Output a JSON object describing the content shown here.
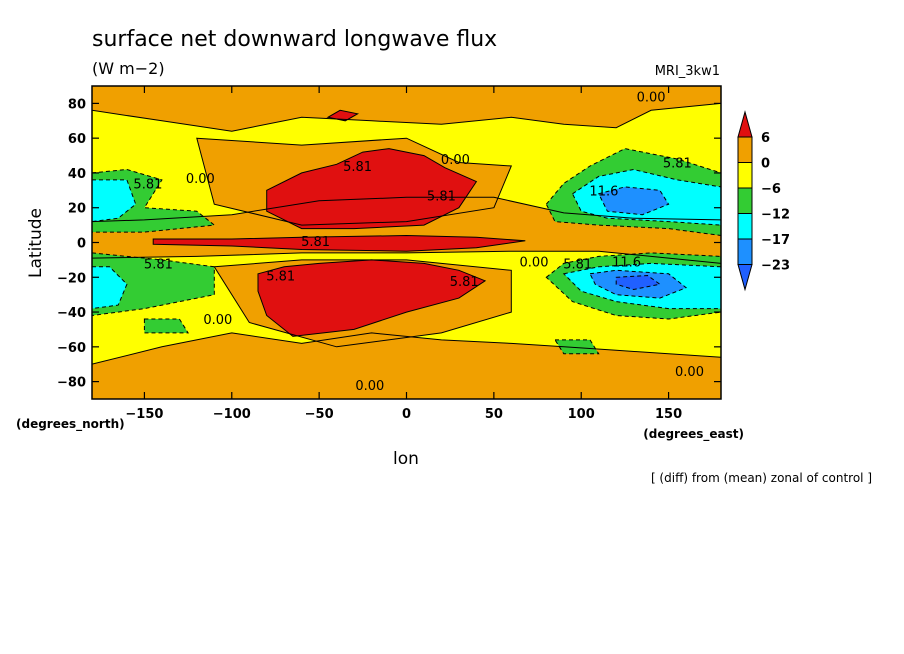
{
  "chart_data": {
    "type": "heatmap",
    "title": "surface net downward longwave flux",
    "units": "(W m−2)",
    "model": "MRI_3kw1",
    "xlabel": "lon",
    "ylabel": "Latitude",
    "x_unit_note": "(degrees_east)",
    "y_unit_note": "(degrees_north)",
    "footnote": "[ (diff) from (mean) zonal of control ]",
    "xlim": [
      -180,
      180
    ],
    "ylim": [
      -90,
      90
    ],
    "x_ticks": [
      {
        "value": -150,
        "label": "−150"
      },
      {
        "value": -100,
        "label": "−100"
      },
      {
        "value": -50,
        "label": "−50"
      },
      {
        "value": 0,
        "label": "0"
      },
      {
        "value": 50,
        "label": "50"
      },
      {
        "value": 100,
        "label": "100"
      },
      {
        "value": 150,
        "label": "150"
      }
    ],
    "y_ticks": [
      {
        "value": 80,
        "label": "80"
      },
      {
        "value": 60,
        "label": "60"
      },
      {
        "value": 40,
        "label": "40"
      },
      {
        "value": 20,
        "label": "20"
      },
      {
        "value": 0,
        "label": "0"
      },
      {
        "value": -20,
        "label": "−20"
      },
      {
        "value": -40,
        "label": "−40"
      },
      {
        "value": -60,
        "label": "−60"
      },
      {
        "value": -80,
        "label": "−80"
      }
    ],
    "colorbar": {
      "levels": [
        6,
        0,
        -6,
        -12,
        -17,
        -23
      ],
      "labels": [
        "6",
        "0",
        "−6",
        "−12",
        "−17",
        "−23"
      ],
      "colors": [
        "#e01010",
        "#f0a000",
        "#ffff00",
        "#33cc33",
        "#00ffff",
        "#1e90ff",
        "#2060ff"
      ]
    },
    "contour_labels": [
      {
        "lon": 140,
        "lat": 84,
        "text": "0.00"
      },
      {
        "lon": 28,
        "lat": 48,
        "text": "0.00"
      },
      {
        "lon": -28,
        "lat": 44,
        "text": "5.81"
      },
      {
        "lon": 155,
        "lat": 46,
        "text": "5.81"
      },
      {
        "lon": -148,
        "lat": 34,
        "text": "5.81"
      },
      {
        "lon": -118,
        "lat": 37,
        "text": "0.00"
      },
      {
        "lon": 20,
        "lat": 27,
        "text": "5.81"
      },
      {
        "lon": 113,
        "lat": 30,
        "text": "11.6"
      },
      {
        "lon": -52,
        "lat": 1,
        "text": "5.81"
      },
      {
        "lon": -142,
        "lat": -12,
        "text": "5.81"
      },
      {
        "lon": 73,
        "lat": -11,
        "text": "0.00"
      },
      {
        "lon": 98,
        "lat": -12,
        "text": "5.81"
      },
      {
        "lon": 126,
        "lat": -11,
        "text": "11.6"
      },
      {
        "lon": -72,
        "lat": -19,
        "text": "5.81"
      },
      {
        "lon": 33,
        "lat": -22,
        "text": "5.81"
      },
      {
        "lon": -108,
        "lat": -44,
        "text": "0.00"
      },
      {
        "lon": -21,
        "lat": -82,
        "text": "0.00"
      },
      {
        "lon": 162,
        "lat": -74,
        "text": "0.00"
      }
    ],
    "regions": [
      {
        "level": "0 to 6",
        "color": "#f0a000",
        "polygon": [
          [
            -180,
            12
          ],
          [
            -150,
            13
          ],
          [
            -100,
            16
          ],
          [
            -50,
            24
          ],
          [
            0,
            26
          ],
          [
            50,
            26
          ],
          [
            90,
            17
          ],
          [
            130,
            14
          ],
          [
            180,
            13
          ],
          [
            180,
            -12
          ],
          [
            150,
            -9
          ],
          [
            110,
            -5
          ],
          [
            60,
            -5
          ],
          [
            0,
            -6
          ],
          [
            -60,
            -6
          ],
          [
            -120,
            -8
          ],
          [
            -180,
            -9
          ]
        ]
      },
      {
        "level": "0 to 6",
        "color": "#f0a000",
        "polygon": [
          [
            -180,
            76
          ],
          [
            -140,
            70
          ],
          [
            -100,
            64
          ],
          [
            -60,
            72
          ],
          [
            -20,
            70
          ],
          [
            20,
            68
          ],
          [
            60,
            72
          ],
          [
            90,
            68
          ],
          [
            120,
            66
          ],
          [
            140,
            76
          ],
          [
            180,
            80
          ],
          [
            180,
            90
          ],
          [
            -180,
            90
          ]
        ]
      },
      {
        "level": "0 to 6",
        "color": "#f0a000",
        "polygon": [
          [
            -180,
            -70
          ],
          [
            -140,
            -60
          ],
          [
            -100,
            -52
          ],
          [
            -60,
            -58
          ],
          [
            -20,
            -52
          ],
          [
            20,
            -56
          ],
          [
            60,
            -58
          ],
          [
            90,
            -60
          ],
          [
            120,
            -62
          ],
          [
            180,
            -66
          ],
          [
            180,
            -90
          ],
          [
            -180,
            -90
          ]
        ]
      },
      {
        "level": "0 to 6",
        "color": "#f0a000",
        "polygon": [
          [
            -120,
            60
          ],
          [
            -60,
            56
          ],
          [
            0,
            60
          ],
          [
            30,
            46
          ],
          [
            60,
            44
          ],
          [
            50,
            20
          ],
          [
            0,
            12
          ],
          [
            -60,
            10
          ],
          [
            -110,
            22
          ]
        ]
      },
      {
        "level": "0 to 6",
        "color": "#f0a000",
        "polygon": [
          [
            -110,
            -14
          ],
          [
            -60,
            -10
          ],
          [
            0,
            -10
          ],
          [
            60,
            -16
          ],
          [
            60,
            -40
          ],
          [
            20,
            -52
          ],
          [
            -40,
            -60
          ],
          [
            -90,
            -46
          ]
        ]
      },
      {
        "level": "> 6",
        "color": "#e01010",
        "polygon": [
          [
            -80,
            30
          ],
          [
            -60,
            40
          ],
          [
            -40,
            45
          ],
          [
            -25,
            52
          ],
          [
            -10,
            54
          ],
          [
            10,
            50
          ],
          [
            22,
            43
          ],
          [
            40,
            35
          ],
          [
            30,
            20
          ],
          [
            10,
            10
          ],
          [
            -30,
            8
          ],
          [
            -60,
            8
          ],
          [
            -80,
            18
          ]
        ]
      },
      {
        "level": "> 6",
        "color": "#e01010",
        "polygon": [
          [
            -145,
            2
          ],
          [
            -100,
            2
          ],
          [
            -60,
            3
          ],
          [
            0,
            4
          ],
          [
            40,
            3
          ],
          [
            68,
            1
          ],
          [
            40,
            -3
          ],
          [
            0,
            -5
          ],
          [
            -60,
            -4
          ],
          [
            -100,
            -2
          ],
          [
            -145,
            -1
          ]
        ]
      },
      {
        "level": "> 6",
        "color": "#e01010",
        "polygon": [
          [
            -85,
            -18
          ],
          [
            -70,
            -14
          ],
          [
            -50,
            -12
          ],
          [
            -20,
            -10
          ],
          [
            10,
            -12
          ],
          [
            30,
            -16
          ],
          [
            45,
            -22
          ],
          [
            30,
            -32
          ],
          [
            0,
            -40
          ],
          [
            -30,
            -50
          ],
          [
            -65,
            -54
          ],
          [
            -80,
            -42
          ],
          [
            -85,
            -28
          ]
        ]
      },
      {
        "level": "> 6",
        "color": "#e01010",
        "polygon": [
          [
            -45,
            72
          ],
          [
            -35,
            70
          ],
          [
            -28,
            74
          ],
          [
            -38,
            76
          ]
        ]
      },
      {
        "level": "-6 to -12",
        "color": "#33cc33",
        "polygon": [
          [
            80,
            22
          ],
          [
            90,
            34
          ],
          [
            105,
            44
          ],
          [
            125,
            54
          ],
          [
            155,
            48
          ],
          [
            180,
            40
          ],
          [
            180,
            4
          ],
          [
            150,
            8
          ],
          [
            110,
            10
          ],
          [
            85,
            12
          ]
        ]
      },
      {
        "level": "-6 to -12",
        "color": "#33cc33",
        "polygon": [
          [
            80,
            -20
          ],
          [
            90,
            -12
          ],
          [
            110,
            -8
          ],
          [
            140,
            -6
          ],
          [
            180,
            -8
          ],
          [
            180,
            -40
          ],
          [
            150,
            -44
          ],
          [
            120,
            -42
          ],
          [
            95,
            -34
          ]
        ]
      },
      {
        "level": "-6 to -12",
        "color": "#33cc33",
        "polygon": [
          [
            -180,
            40
          ],
          [
            -160,
            42
          ],
          [
            -140,
            36
          ],
          [
            -150,
            20
          ],
          [
            -120,
            18
          ],
          [
            -110,
            10
          ],
          [
            -150,
            6
          ],
          [
            -180,
            6
          ]
        ]
      },
      {
        "level": "-6 to -12",
        "color": "#33cc33",
        "polygon": [
          [
            -180,
            -6
          ],
          [
            -140,
            -10
          ],
          [
            -110,
            -14
          ],
          [
            -110,
            -30
          ],
          [
            -150,
            -38
          ],
          [
            -180,
            -42
          ]
        ]
      },
      {
        "level": "-6 to -12",
        "color": "#33cc33",
        "polygon": [
          [
            -150,
            -44
          ],
          [
            -130,
            -44
          ],
          [
            -125,
            -52
          ],
          [
            -150,
            -52
          ]
        ]
      },
      {
        "level": "-6 to -12",
        "color": "#33cc33",
        "polygon": [
          [
            85,
            -56
          ],
          [
            105,
            -56
          ],
          [
            110,
            -64
          ],
          [
            90,
            -64
          ]
        ]
      },
      {
        "level": "-12 to -17",
        "color": "#00ffff",
        "polygon": [
          [
            95,
            28
          ],
          [
            110,
            38
          ],
          [
            130,
            42
          ],
          [
            155,
            36
          ],
          [
            180,
            32
          ],
          [
            180,
            10
          ],
          [
            150,
            12
          ],
          [
            115,
            14
          ],
          [
            100,
            18
          ]
        ]
      },
      {
        "level": "-12 to -17",
        "color": "#00ffff",
        "polygon": [
          [
            90,
            -18
          ],
          [
            110,
            -14
          ],
          [
            140,
            -12
          ],
          [
            180,
            -14
          ],
          [
            180,
            -38
          ],
          [
            150,
            -38
          ],
          [
            120,
            -34
          ],
          [
            100,
            -28
          ]
        ]
      },
      {
        "level": "-12 to -17",
        "color": "#00ffff",
        "polygon": [
          [
            -180,
            36
          ],
          [
            -160,
            36
          ],
          [
            -155,
            22
          ],
          [
            -165,
            14
          ],
          [
            -180,
            12
          ]
        ]
      },
      {
        "level": "-12 to -17",
        "color": "#00ffff",
        "polygon": [
          [
            -180,
            -14
          ],
          [
            -170,
            -14
          ],
          [
            -160,
            -24
          ],
          [
            -165,
            -36
          ],
          [
            -180,
            -38
          ]
        ]
      },
      {
        "level": "-17 to -23",
        "color": "#1e90ff",
        "polygon": [
          [
            110,
            28
          ],
          [
            125,
            32
          ],
          [
            145,
            30
          ],
          [
            150,
            22
          ],
          [
            135,
            16
          ],
          [
            115,
            18
          ]
        ]
      },
      {
        "level": "-17 to -23",
        "color": "#1e90ff",
        "polygon": [
          [
            105,
            -18
          ],
          [
            120,
            -16
          ],
          [
            150,
            -18
          ],
          [
            160,
            -26
          ],
          [
            145,
            -32
          ],
          [
            120,
            -30
          ],
          [
            108,
            -24
          ]
        ]
      },
      {
        "level": "< -23",
        "color": "#2060ff",
        "polygon": [
          [
            120,
            -20
          ],
          [
            138,
            -19
          ],
          [
            145,
            -24
          ],
          [
            130,
            -27
          ],
          [
            120,
            -24
          ]
        ]
      }
    ]
  }
}
